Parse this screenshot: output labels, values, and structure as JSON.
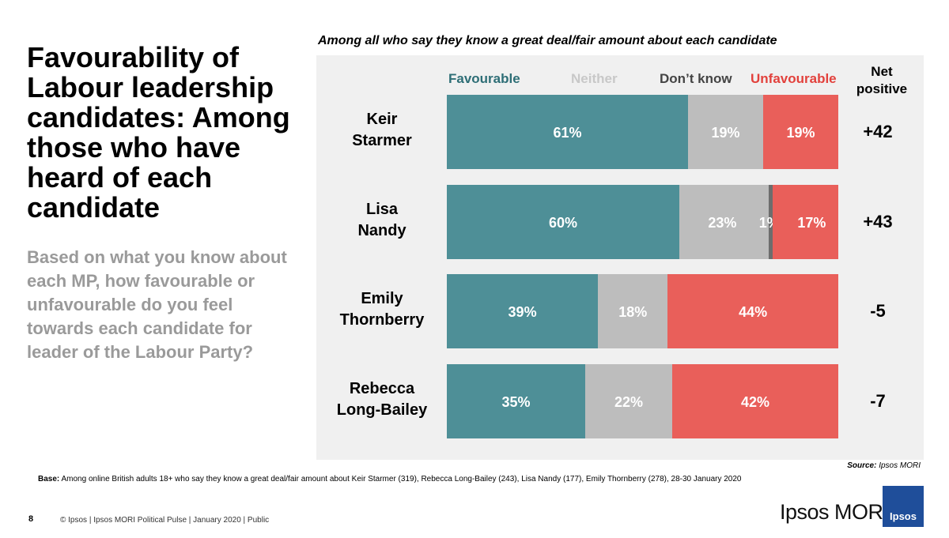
{
  "title": "Favourability of Labour leadership candidates: Among those who have heard of each candidate",
  "question": "Based on what you know about each MP, how favourable or unfavourable do you feel towards each candidate for leader of the Labour Party?",
  "chart_data": {
    "type": "bar",
    "orientation": "horizontal-stacked",
    "title": "Among all who say they know a great deal/fair amount about each candidate",
    "categories": [
      "Keir Starmer",
      "Lisa Nandy",
      "Emily Thornberry",
      "Rebecca Long-Bailey"
    ],
    "category_lines": [
      [
        "Keir",
        "Starmer"
      ],
      [
        "Lisa",
        "Nandy"
      ],
      [
        "Emily",
        "Thornberry"
      ],
      [
        "Rebecca",
        "Long-Bailey"
      ]
    ],
    "series": [
      {
        "name": "Favourable",
        "color": "#4e8f97",
        "values": [
          61,
          60,
          39,
          35
        ],
        "labels": [
          "61%",
          "60%",
          "39%",
          "35%"
        ]
      },
      {
        "name": "Neither",
        "color": "#bdbdbd",
        "values": [
          19,
          23,
          18,
          22
        ],
        "labels": [
          "19%",
          "23%",
          "18%",
          "22%"
        ]
      },
      {
        "name": "Don’t know",
        "color": "#6d6d6d",
        "values": [
          0,
          1,
          0,
          0
        ],
        "labels": [
          "",
          "1%",
          "",
          ""
        ]
      },
      {
        "name": "Unfavourable",
        "color": "#e95f5a",
        "values": [
          19,
          17,
          44,
          42
        ],
        "labels": [
          "19%",
          "17%",
          "44%",
          "42%"
        ]
      }
    ],
    "legend_label_colors": [
      "#2e6e76",
      "#c8c8c8",
      "#444444",
      "#e2413c"
    ],
    "net_header": "Net positive",
    "net_values": [
      "+42",
      "+43",
      "-5",
      "-7"
    ]
  },
  "source_label": "Source:",
  "source_text": "Ipsos MORI",
  "base_label": "Base:",
  "base_text": "Among online British adults 18+ who say they know a great deal/fair amount about Keir Starmer (319), Rebecca Long-Bailey (243), Lisa Nandy (177), Emily Thornberry (278), 28-30 January 2020",
  "page_number": "8",
  "footer": "© Ipsos | Ipsos MORI Political Pulse | January 2020 | Public",
  "brand": "Ipsos MORI",
  "logo_text": "Ipsos"
}
